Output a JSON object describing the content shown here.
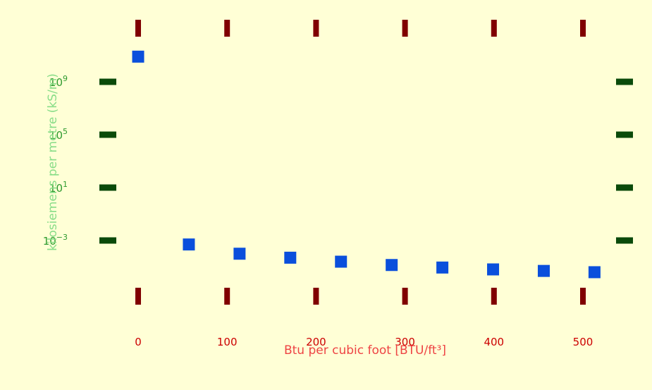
{
  "chart_data": {
    "type": "scatter",
    "title": "",
    "xlabel": "Btu per cubic foot [BTU/ft³]",
    "ylabel": "kilosiemens per metre (kS/m)",
    "x_ticks": [
      {
        "value": 0,
        "label": "0"
      },
      {
        "value": 100,
        "label": "100"
      },
      {
        "value": 200,
        "label": "200"
      },
      {
        "value": 300,
        "label": "300"
      },
      {
        "value": 400,
        "label": "400"
      },
      {
        "value": 500,
        "label": "500"
      }
    ],
    "y_scale": "log",
    "y_ticks": [
      {
        "exponent": -3,
        "base": "10",
        "sup": "−3"
      },
      {
        "exponent": 1,
        "base": "10",
        "sup": "1"
      },
      {
        "exponent": 5,
        "base": "10",
        "sup": "5"
      },
      {
        "exponent": 9,
        "base": "10",
        "sup": "9"
      }
    ],
    "xlim": [
      -40,
      550
    ],
    "grid": false,
    "points": [
      {
        "x": 0,
        "y": 80000000000.0
      },
      {
        "x": 57,
        "y": 0.0005
      },
      {
        "x": 114,
        "y": 0.0001
      },
      {
        "x": 171,
        "y": 5e-05
      },
      {
        "x": 228,
        "y": 2.5e-05
      },
      {
        "x": 285,
        "y": 1.4e-05
      },
      {
        "x": 342,
        "y": 9e-06
      },
      {
        "x": 399,
        "y": 6.5e-06
      },
      {
        "x": 456,
        "y": 5e-06
      },
      {
        "x": 513,
        "y": 4e-06
      }
    ],
    "colors": {
      "background": "#ffffd6",
      "marker": "#0a4fdc",
      "x_tick_mark": "#800000",
      "x_tick_label": "#cc0000",
      "x_axis_title": "#ee4444",
      "y_tick_mark": "#0a4a0a",
      "y_tick_label": "#2e9a2e",
      "y_axis_title": "#88dd88"
    }
  }
}
